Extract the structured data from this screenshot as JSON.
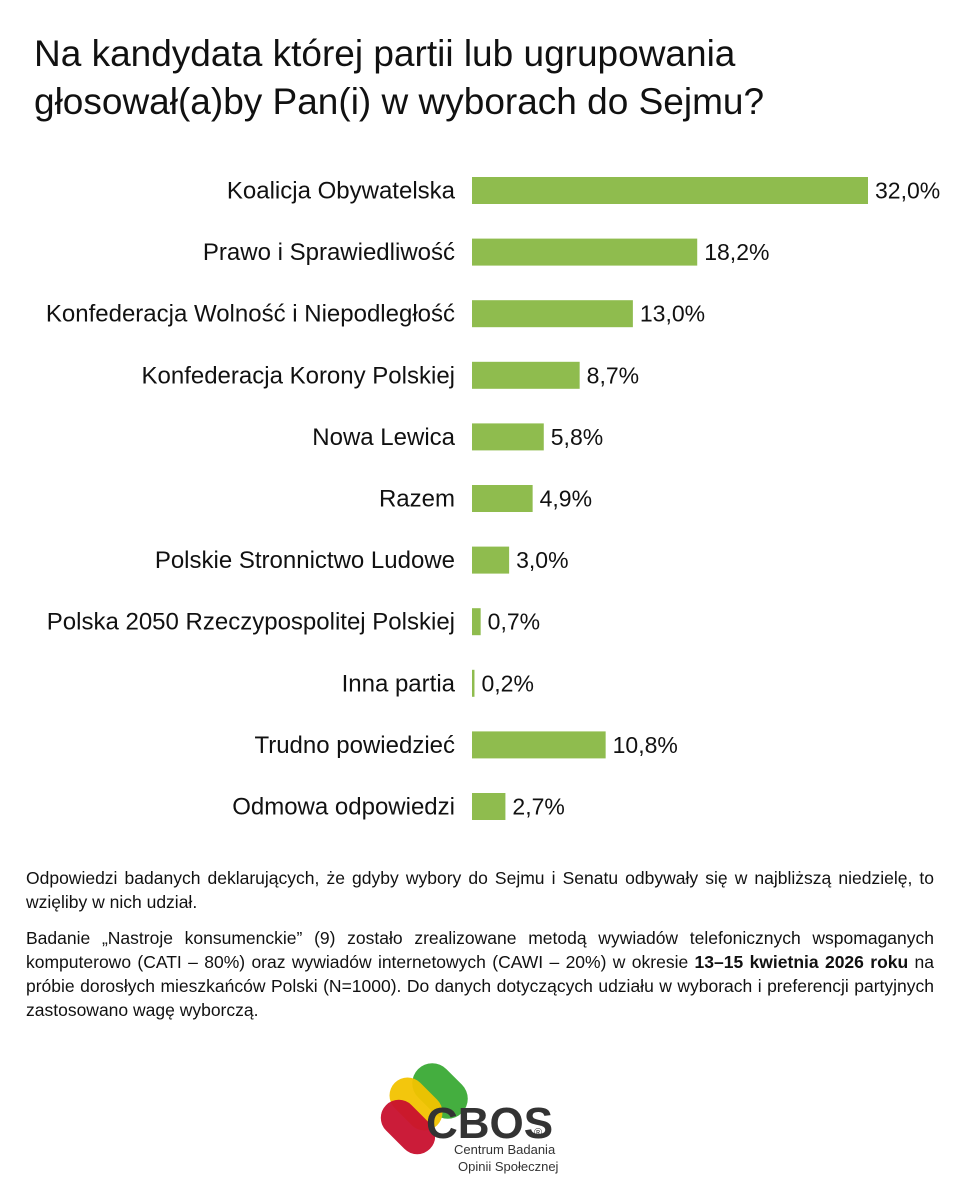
{
  "title": "Na kandydata której partii lub ugrupowania głosował(a)by Pan(i) w wyborach do Sejmu?",
  "chart_data": {
    "type": "bar",
    "orientation": "horizontal",
    "categories": [
      "Koalicja Obywatelska",
      "Prawo i Sprawiedliwość",
      "Konfederacja Wolność i Niepodległość",
      "Konfederacja Korony Polskiej",
      "Nowa Lewica",
      "Razem",
      "Polskie Stronnictwo Ludowe",
      "Polska 2050 Rzeczypospolitej Polskiej",
      "Inna partia",
      "Trudno powiedzieć",
      "Odmowa odpowiedzi"
    ],
    "values": [
      32.0,
      18.2,
      13.0,
      8.7,
      5.8,
      4.9,
      3.0,
      0.7,
      0.2,
      10.8,
      2.7
    ],
    "value_labels": [
      "32,0%",
      "18,2%",
      "13,0%",
      "8,7%",
      "5,8%",
      "4,9%",
      "3,0%",
      "0,7%",
      "0,2%",
      "10,8%",
      "2,7%"
    ],
    "xlim": [
      0,
      32
    ],
    "grid": false,
    "bar_color": "#8fbc4e"
  },
  "notes": {
    "p1": "Odpowiedzi badanych deklarujących, że gdyby wybory do Sejmu i Senatu odbywały się w najbliższą niedzielę, to wzięliby w nich udział.",
    "p2_before": "Badanie „Nastroje konsumenckie” (9) zostało zrealizowane metodą wywiadów telefonicznych wspomaganych komputerowo (CATI – 80%) oraz wywiadów internetowych (CAWI – 20%) w okresie ",
    "p2_bold": "13–15 kwietnia 2026 roku",
    "p2_after": " na próbie dorosłych mieszkańców Polski (N=1000). Do danych dotyczących udziału w wyborach i preferencji partyjnych zastosowano wagę wyborczą."
  },
  "logo": {
    "wordmark": "CBOS",
    "registered": "®",
    "line1": "Centrum Badania",
    "line2": "Opinii Społecznej",
    "colors": [
      "#c8102e",
      "#f2c300",
      "#3aaa35"
    ]
  }
}
